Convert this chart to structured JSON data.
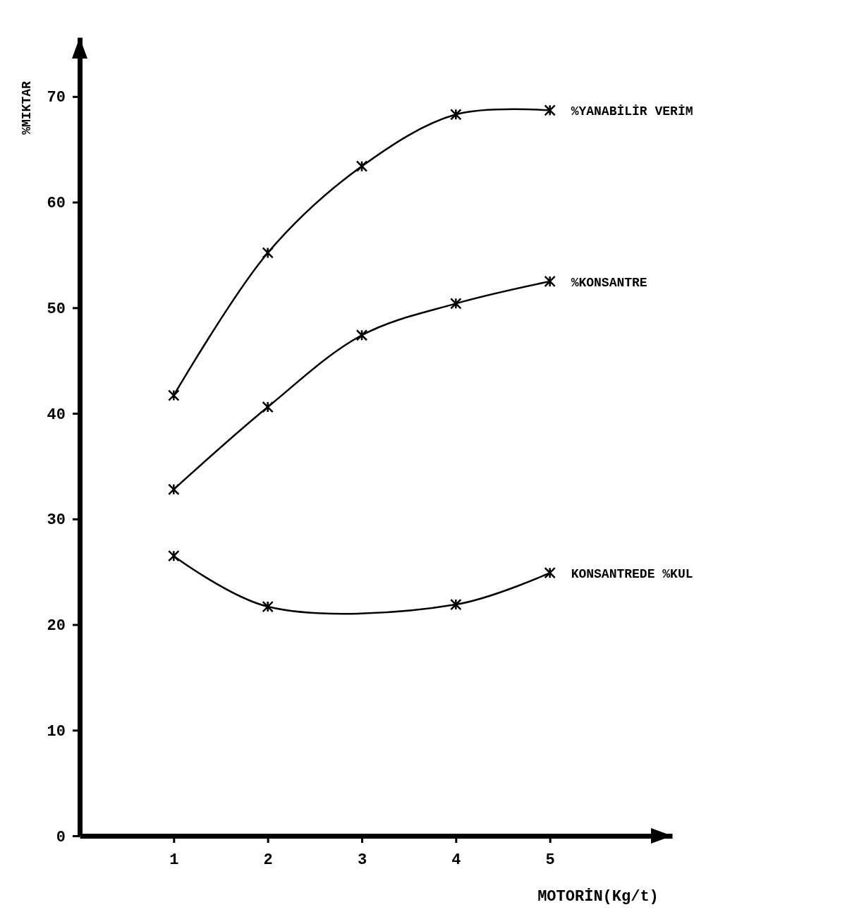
{
  "chart_data": {
    "type": "line",
    "xlabel": "MOTORİN(Kg/t)",
    "ylabel": "%MIKTAR",
    "x": [
      1,
      2,
      3,
      4,
      5
    ],
    "series": [
      {
        "name": "%YANABİLİR VERİM",
        "color": "#000000",
        "values": [
          41.7,
          55.2,
          63.4,
          68.3,
          68.7
        ]
      },
      {
        "name": "%KONSANTRE",
        "color": "#000000",
        "values": [
          32.8,
          40.6,
          47.4,
          50.4,
          52.5
        ]
      },
      {
        "name": "KONSANTREDE %KUL",
        "color": "#000000",
        "x": [
          1,
          2,
          4,
          5
        ],
        "values": [
          26.5,
          21.7,
          21.9,
          24.9
        ]
      }
    ],
    "xlim": [
      0,
      6.3
    ],
    "ylim": [
      0,
      75.6
    ],
    "xticks": [
      1,
      2,
      3,
      4,
      5
    ],
    "yticks": [
      0,
      10,
      20,
      30,
      40,
      50,
      60,
      70
    ],
    "grid": false,
    "marker": "cross",
    "line_style": "solid"
  }
}
